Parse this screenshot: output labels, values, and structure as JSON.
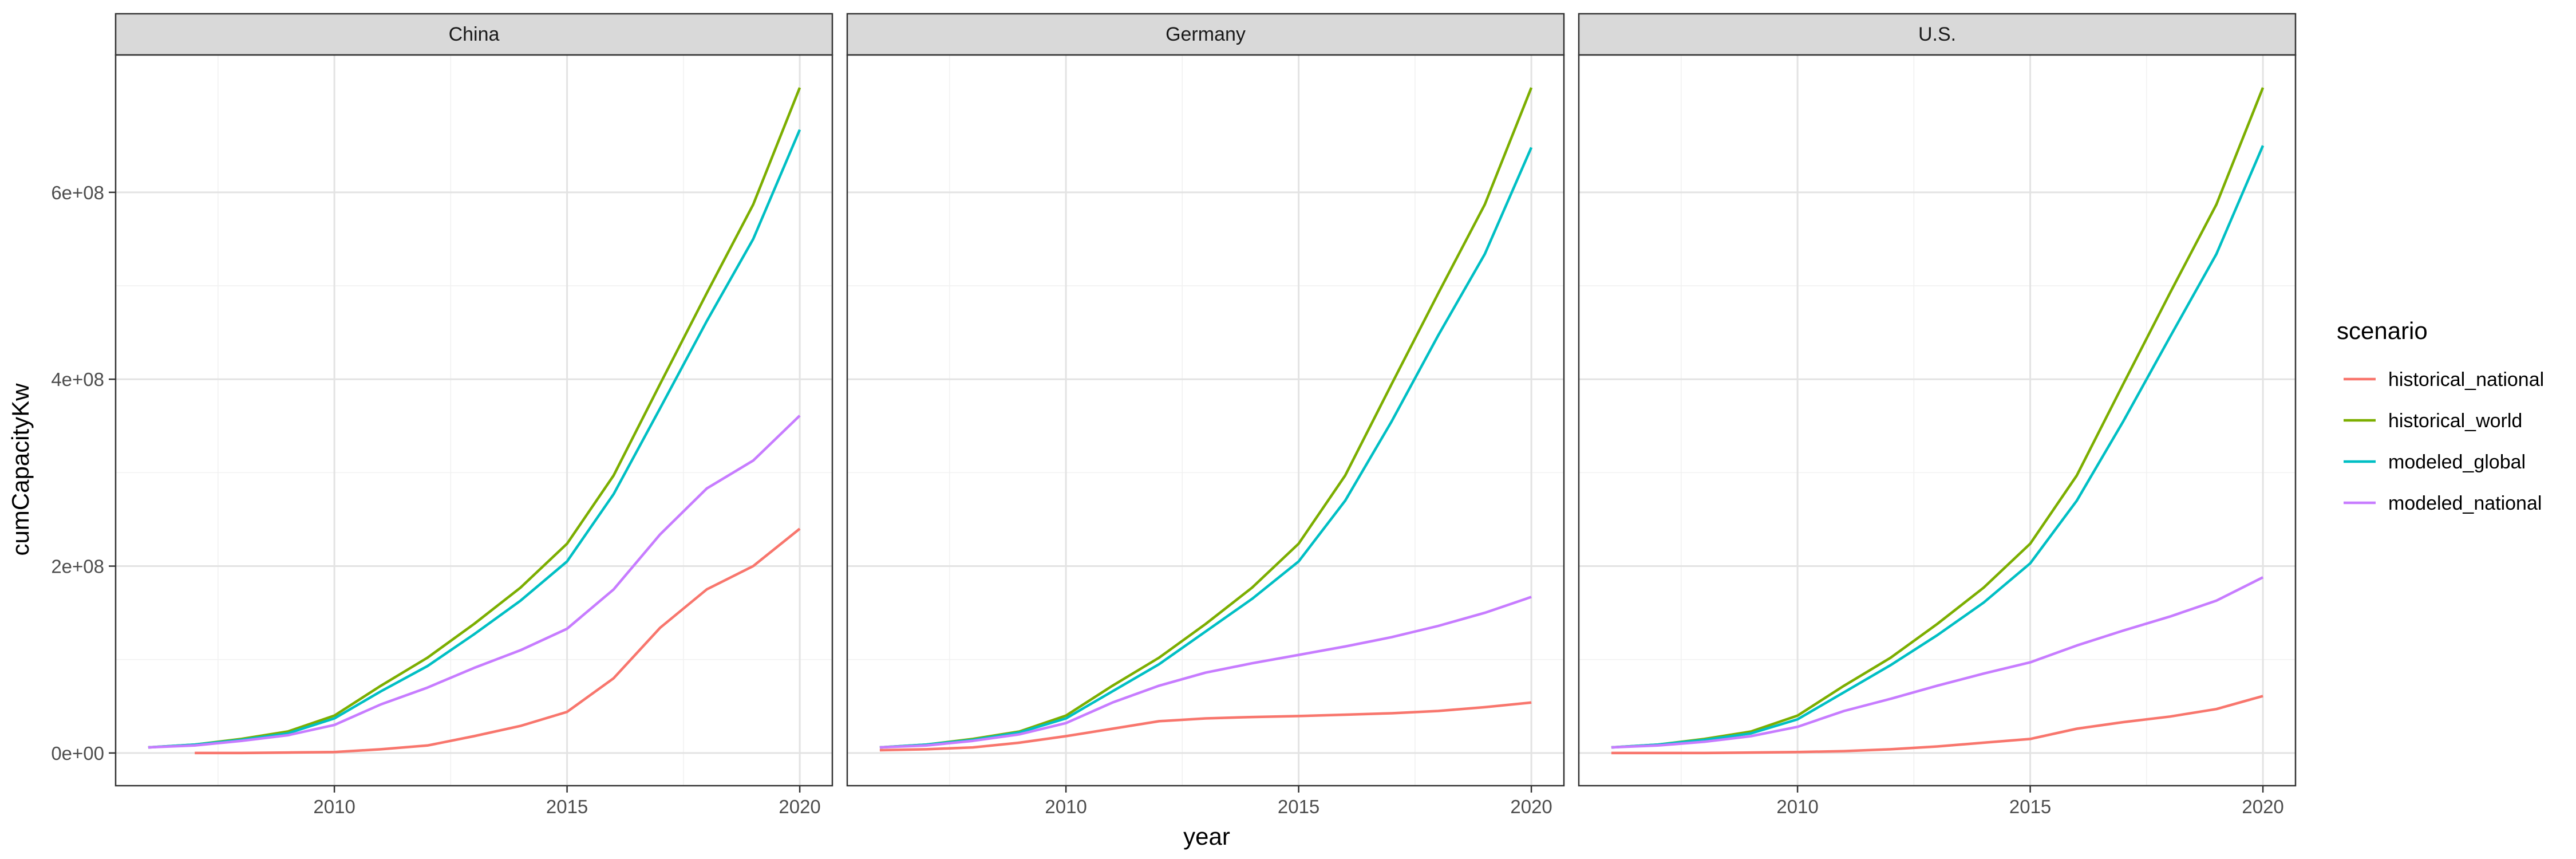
{
  "chart_data": {
    "type": "line",
    "xlabel": "year",
    "ylabel": "cumCapacityKw",
    "xlim": [
      2005.3,
      2020.7
    ],
    "ylim": [
      -35000000,
      747000000
    ],
    "x_ticks": [
      2010,
      2015,
      2020
    ],
    "x_tick_labels": [
      "2010",
      "2015",
      "2020"
    ],
    "y_ticks": [
      0,
      200000000,
      400000000,
      600000000
    ],
    "y_tick_labels": [
      "0e+00",
      "2e+08",
      "4e+08",
      "6e+08"
    ],
    "grid": true,
    "legend": {
      "title": "scenario",
      "placement": "right",
      "entries": [
        "historical_national",
        "historical_world",
        "modeled_global",
        "modeled_national"
      ]
    },
    "series_colors": {
      "historical_national": "#F8766D",
      "historical_world": "#7CAE00",
      "modeled_global": "#00BFC4",
      "modeled_national": "#C77CFF"
    },
    "panels": [
      {
        "title": "China",
        "series": [
          {
            "name": "historical_national",
            "x": [
              2007,
              2008,
              2009,
              2010,
              2011,
              2012,
              2013,
              2014,
              2015,
              2016,
              2017,
              2018,
              2019,
              2020
            ],
            "values": [
              0,
              0,
              500000,
              1000000,
              4000000,
              8000000,
              18000000,
              29000000,
              44000000,
              80000000,
              134000000,
              175000000,
              200000000,
              240000000
            ]
          },
          {
            "name": "historical_world",
            "x": [
              2006,
              2007,
              2008,
              2009,
              2010,
              2011,
              2012,
              2013,
              2014,
              2015,
              2016,
              2017,
              2018,
              2019,
              2020
            ],
            "values": [
              6000000,
              9000000,
              15000000,
              23000000,
              40000000,
              72000000,
              102000000,
              138000000,
              177000000,
              224000000,
              297000000,
              395000000,
              492000000,
              587000000,
              712000000
            ]
          },
          {
            "name": "modeled_global",
            "x": [
              2006,
              2007,
              2008,
              2009,
              2010,
              2011,
              2012,
              2013,
              2014,
              2015,
              2016,
              2017,
              2018,
              2019,
              2020
            ],
            "values": [
              6000000,
              9000000,
              14000000,
              21000000,
              37000000,
              66000000,
              93000000,
              127000000,
              163000000,
              205000000,
              277000000,
              369000000,
              462000000,
              550000000,
              667000000
            ]
          },
          {
            "name": "modeled_national",
            "x": [
              2006,
              2007,
              2008,
              2009,
              2010,
              2011,
              2012,
              2013,
              2014,
              2015,
              2016,
              2017,
              2018,
              2019,
              2020
            ],
            "values": [
              6000000,
              8000000,
              13000000,
              19000000,
              30000000,
              52000000,
              70000000,
              91000000,
              110000000,
              133000000,
              175000000,
              234000000,
              283000000,
              313000000,
              361000000
            ]
          }
        ]
      },
      {
        "title": "Germany",
        "series": [
          {
            "name": "historical_national",
            "x": [
              2006,
              2007,
              2008,
              2009,
              2010,
              2011,
              2012,
              2013,
              2014,
              2015,
              2016,
              2017,
              2018,
              2019,
              2020
            ],
            "values": [
              3000000,
              4000000,
              6000000,
              11000000,
              18000000,
              26000000,
              34000000,
              37000000,
              38500000,
              39500000,
              41000000,
              42500000,
              45000000,
              49000000,
              54000000
            ]
          },
          {
            "name": "historical_world",
            "x": [
              2006,
              2007,
              2008,
              2009,
              2010,
              2011,
              2012,
              2013,
              2014,
              2015,
              2016,
              2017,
              2018,
              2019,
              2020
            ],
            "values": [
              6000000,
              9000000,
              15000000,
              23000000,
              40000000,
              72000000,
              102000000,
              138000000,
              177000000,
              224000000,
              297000000,
              395000000,
              492000000,
              587000000,
              712000000
            ]
          },
          {
            "name": "modeled_global",
            "x": [
              2006,
              2007,
              2008,
              2009,
              2010,
              2011,
              2012,
              2013,
              2014,
              2015,
              2016,
              2017,
              2018,
              2019,
              2020
            ],
            "values": [
              6000000,
              9000000,
              14000000,
              22000000,
              37000000,
              66000000,
              95000000,
              130000000,
              165000000,
              205000000,
              270000000,
              355000000,
              447000000,
              534000000,
              648000000
            ]
          },
          {
            "name": "modeled_national",
            "x": [
              2006,
              2007,
              2008,
              2009,
              2010,
              2011,
              2012,
              2013,
              2014,
              2015,
              2016,
              2017,
              2018,
              2019,
              2020
            ],
            "values": [
              6000000,
              8000000,
              13000000,
              20000000,
              32000000,
              54000000,
              72000000,
              86000000,
              96000000,
              105000000,
              114000000,
              124000000,
              136000000,
              150000000,
              167000000
            ]
          }
        ]
      },
      {
        "title": "U.S.",
        "series": [
          {
            "name": "historical_national",
            "x": [
              2006,
              2007,
              2008,
              2009,
              2010,
              2011,
              2012,
              2013,
              2014,
              2015,
              2016,
              2017,
              2018,
              2019,
              2020
            ],
            "values": [
              0,
              0,
              0,
              500000,
              1000000,
              2000000,
              4000000,
              7000000,
              11000000,
              15000000,
              26000000,
              33000000,
              39000000,
              47000000,
              61000000
            ]
          },
          {
            "name": "historical_world",
            "x": [
              2006,
              2007,
              2008,
              2009,
              2010,
              2011,
              2012,
              2013,
              2014,
              2015,
              2016,
              2017,
              2018,
              2019,
              2020
            ],
            "values": [
              6000000,
              9000000,
              15000000,
              23000000,
              40000000,
              72000000,
              102000000,
              138000000,
              177000000,
              224000000,
              297000000,
              395000000,
              492000000,
              587000000,
              712000000
            ]
          },
          {
            "name": "modeled_global",
            "x": [
              2006,
              2007,
              2008,
              2009,
              2010,
              2011,
              2012,
              2013,
              2014,
              2015,
              2016,
              2017,
              2018,
              2019,
              2020
            ],
            "values": [
              6000000,
              9000000,
              14000000,
              21000000,
              36000000,
              65000000,
              94000000,
              126000000,
              161000000,
              203000000,
              270000000,
              355000000,
              445000000,
              534000000,
              650000000
            ]
          },
          {
            "name": "modeled_national",
            "x": [
              2006,
              2007,
              2008,
              2009,
              2010,
              2011,
              2012,
              2013,
              2014,
              2015,
              2016,
              2017,
              2018,
              2019,
              2020
            ],
            "values": [
              6000000,
              8000000,
              12000000,
              18000000,
              28000000,
              45000000,
              58000000,
              72000000,
              85000000,
              97000000,
              115000000,
              131000000,
              146000000,
              163000000,
              188000000
            ]
          }
        ]
      }
    ]
  }
}
